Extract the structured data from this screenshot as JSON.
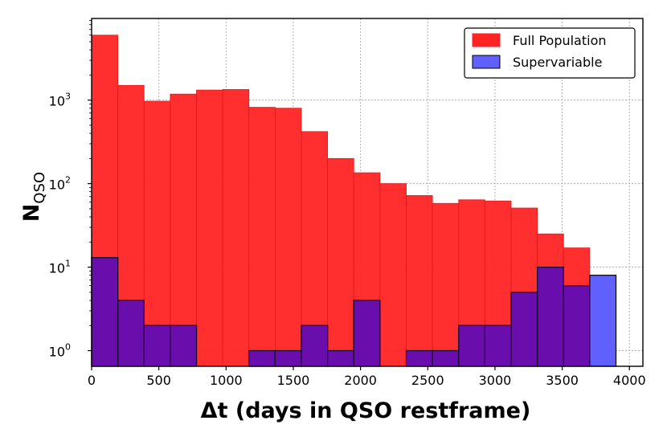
{
  "chart_data": {
    "type": "bar",
    "subtype": "histogram",
    "xlabel": "Δt (days in QSO restframe)",
    "ylabel": "N",
    "ylabel_subscript": "QSO",
    "xlim": [
      0,
      4100
    ],
    "ylim": [
      0.65,
      9500
    ],
    "yscale": "log",
    "grid": true,
    "legend_position": "top-right",
    "x_ticks": [
      0,
      500,
      1000,
      1500,
      2000,
      2500,
      3000,
      3500,
      4000
    ],
    "y_ticks": [
      {
        "value": 1,
        "base": "10",
        "exp": "0"
      },
      {
        "value": 10,
        "base": "10",
        "exp": "1"
      },
      {
        "value": 100,
        "base": "10",
        "exp": "2"
      },
      {
        "value": 1000,
        "base": "10",
        "exp": "3"
      }
    ],
    "bin_edges": [
      0,
      195,
      390,
      585,
      780,
      975,
      1170,
      1365,
      1560,
      1755,
      1950,
      2145,
      2340,
      2535,
      2730,
      2925,
      3120,
      3315,
      3510,
      3705,
      3900,
      4095
    ],
    "series": [
      {
        "name": "Full Population",
        "color": "#ff2424",
        "edge": "#e01818",
        "counts": [
          6000,
          1500,
          970,
          1180,
          1320,
          1340,
          820,
          800,
          420,
          200,
          135,
          100,
          72,
          58,
          64,
          62,
          51,
          25,
          17,
          0,
          0
        ]
      },
      {
        "name": "Supervariable",
        "color": "#6060ff",
        "edge": "#000000",
        "counts": [
          13,
          4,
          2,
          2,
          0,
          0,
          1,
          1,
          2,
          1,
          4,
          0,
          1,
          1,
          2,
          2,
          5,
          10,
          6,
          8,
          0
        ]
      }
    ]
  }
}
